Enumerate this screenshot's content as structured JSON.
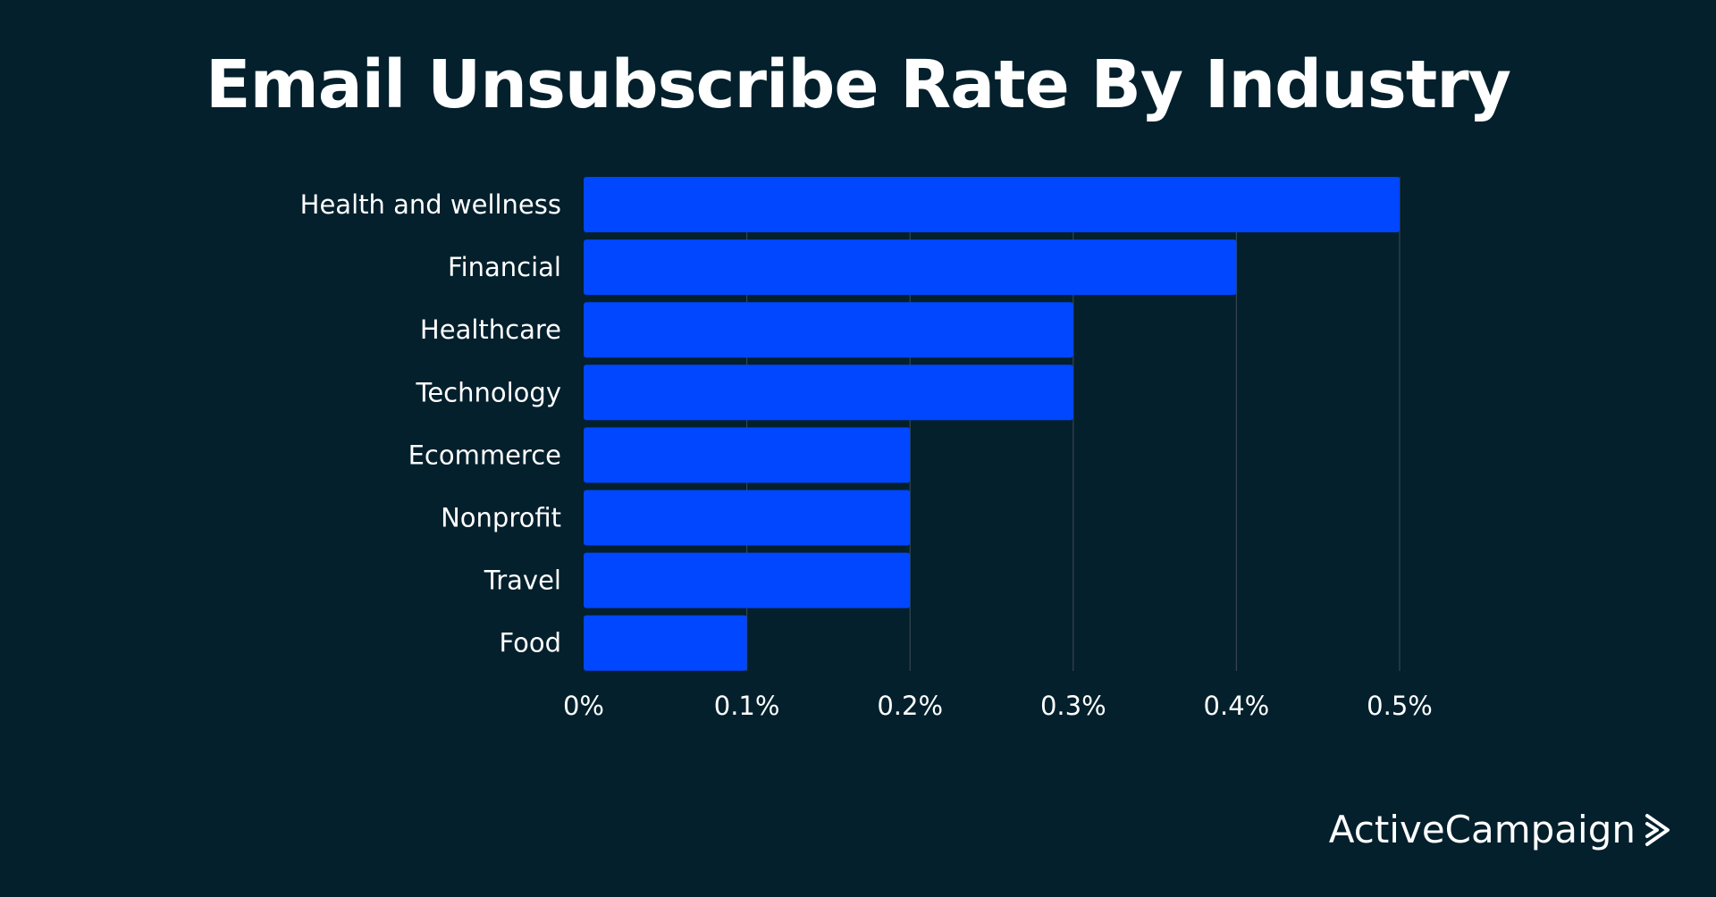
{
  "chart_data": {
    "type": "bar",
    "orientation": "horizontal",
    "title": "Email Unsubscribe Rate By Industry",
    "xlabel": "",
    "ylabel": "",
    "categories": [
      "Health and wellness",
      "Financial",
      "Healthcare",
      "Technology",
      "Ecommerce",
      "Nonprofit",
      "Travel",
      "Food"
    ],
    "values": [
      0.5,
      0.4,
      0.3,
      0.3,
      0.2,
      0.2,
      0.2,
      0.1
    ],
    "value_unit": "%",
    "xlim": [
      0,
      0.5
    ],
    "xticks": [
      0,
      0.1,
      0.2,
      0.3,
      0.4,
      0.5
    ],
    "xtick_labels": [
      "0%",
      "0.1%",
      "0.2%",
      "0.3%",
      "0.4%",
      "0.5%"
    ],
    "grid": "vertical",
    "legend": "none"
  },
  "colors": {
    "background": "#03202c",
    "bar": "#0047ff",
    "grid": "#34454f",
    "text": "#ffffff"
  },
  "branding": {
    "logo_text": "ActiveCampaign",
    "logo_icon": "chevron-right-icon"
  }
}
